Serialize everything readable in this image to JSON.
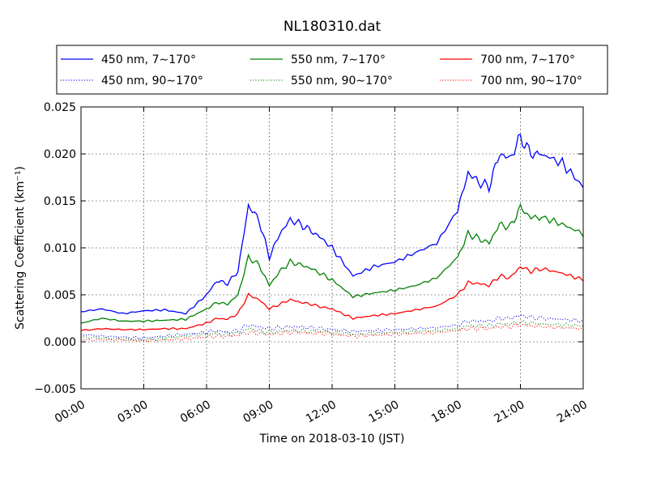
{
  "chart_data": {
    "type": "line",
    "title": "NL180310.dat",
    "xlabel": "Time on 2018-03-10 (JST)",
    "ylabel": "Scattering Coefficient (km⁻¹)",
    "xlim": [
      "00:00",
      "24:00"
    ],
    "ylim": [
      -0.005,
      0.025
    ],
    "xticks": [
      "00:00",
      "03:00",
      "06:00",
      "09:00",
      "12:00",
      "15:00",
      "18:00",
      "21:00",
      "24:00"
    ],
    "yticks": [
      "−0.005",
      "0.000",
      "0.005",
      "0.010",
      "0.015",
      "0.020",
      "0.025"
    ],
    "grid": true,
    "legend_position": "top",
    "x": [
      "00:00",
      "01:00",
      "02:00",
      "03:00",
      "04:00",
      "05:00",
      "06:00",
      "06:30",
      "07:00",
      "07:30",
      "08:00",
      "08:30",
      "09:00",
      "09:30",
      "10:00",
      "10:30",
      "11:00",
      "11:30",
      "12:00",
      "13:00",
      "14:00",
      "15:00",
      "16:00",
      "17:00",
      "18:00",
      "18:30",
      "19:00",
      "19:30",
      "20:00",
      "20:30",
      "21:00",
      "21:30",
      "22:00",
      "23:00",
      "24:00"
    ],
    "series": [
      {
        "name": "450 nm, 7∼170°",
        "color": "#0000ff",
        "style": "solid",
        "values": [
          0.0032,
          0.0035,
          0.003,
          0.0033,
          0.0034,
          0.003,
          0.005,
          0.0065,
          0.0062,
          0.0075,
          0.0145,
          0.013,
          0.009,
          0.0115,
          0.013,
          0.0125,
          0.0118,
          0.011,
          0.01,
          0.007,
          0.008,
          0.0085,
          0.0095,
          0.0105,
          0.014,
          0.018,
          0.017,
          0.0165,
          0.02,
          0.0195,
          0.0218,
          0.02,
          0.02,
          0.019,
          0.0165
        ]
      },
      {
        "name": "450 nm, 90∼170°",
        "color": "#0000ff",
        "style": "dotted",
        "values": [
          0.0008,
          0.0006,
          0.0005,
          0.0004,
          0.0006,
          0.0008,
          0.001,
          0.0012,
          0.001,
          0.0012,
          0.0018,
          0.0016,
          0.0014,
          0.0015,
          0.0016,
          0.0016,
          0.0015,
          0.0014,
          0.0013,
          0.0011,
          0.0012,
          0.0013,
          0.0014,
          0.0015,
          0.0018,
          0.0022,
          0.0022,
          0.0022,
          0.0025,
          0.0025,
          0.0028,
          0.0026,
          0.0025,
          0.0024,
          0.0022
        ]
      },
      {
        "name": "550 nm, 7∼170°",
        "color": "#008000",
        "style": "solid",
        "values": [
          0.002,
          0.0025,
          0.0022,
          0.0022,
          0.0023,
          0.0024,
          0.0035,
          0.0042,
          0.004,
          0.005,
          0.009,
          0.0082,
          0.006,
          0.0075,
          0.0085,
          0.0082,
          0.0078,
          0.0072,
          0.0066,
          0.0048,
          0.0052,
          0.0055,
          0.006,
          0.0068,
          0.009,
          0.0115,
          0.011,
          0.0105,
          0.0125,
          0.0122,
          0.0143,
          0.0132,
          0.0133,
          0.0125,
          0.0115
        ]
      },
      {
        "name": "550 nm, 90∼170°",
        "color": "#008000",
        "style": "dotted",
        "values": [
          0.0005,
          0.0004,
          0.0003,
          0.0002,
          0.0004,
          0.0006,
          0.0008,
          0.0009,
          0.0008,
          0.0009,
          0.0014,
          0.0012,
          0.001,
          0.0011,
          0.0012,
          0.0012,
          0.0011,
          0.0011,
          0.001,
          0.0008,
          0.0009,
          0.001,
          0.0011,
          0.0012,
          0.0014,
          0.0017,
          0.0017,
          0.0017,
          0.0019,
          0.0019,
          0.0021,
          0.002,
          0.0019,
          0.0018,
          0.0017
        ]
      },
      {
        "name": "700 nm, 7∼170°",
        "color": "#ff0000",
        "style": "solid",
        "values": [
          0.0012,
          0.0014,
          0.0013,
          0.0013,
          0.0014,
          0.0014,
          0.002,
          0.0025,
          0.0024,
          0.003,
          0.005,
          0.0045,
          0.0035,
          0.004,
          0.0045,
          0.0042,
          0.004,
          0.0037,
          0.0035,
          0.0025,
          0.0028,
          0.003,
          0.0034,
          0.0038,
          0.005,
          0.0063,
          0.0062,
          0.006,
          0.007,
          0.0068,
          0.008,
          0.0075,
          0.0078,
          0.0073,
          0.0066
        ]
      },
      {
        "name": "700 nm, 90∼170°",
        "color": "#ff0000",
        "style": "dotted",
        "values": [
          0.0002,
          0.0002,
          0.0002,
          0.0001,
          0.0002,
          0.0003,
          0.0005,
          0.0006,
          0.0006,
          0.0007,
          0.001,
          0.0009,
          0.0008,
          0.0009,
          0.001,
          0.001,
          0.0009,
          0.0009,
          0.0008,
          0.0006,
          0.0007,
          0.0008,
          0.0009,
          0.001,
          0.0012,
          0.0014,
          0.0014,
          0.0014,
          0.0016,
          0.0016,
          0.0018,
          0.0017,
          0.0016,
          0.0015,
          0.0014
        ]
      }
    ]
  }
}
